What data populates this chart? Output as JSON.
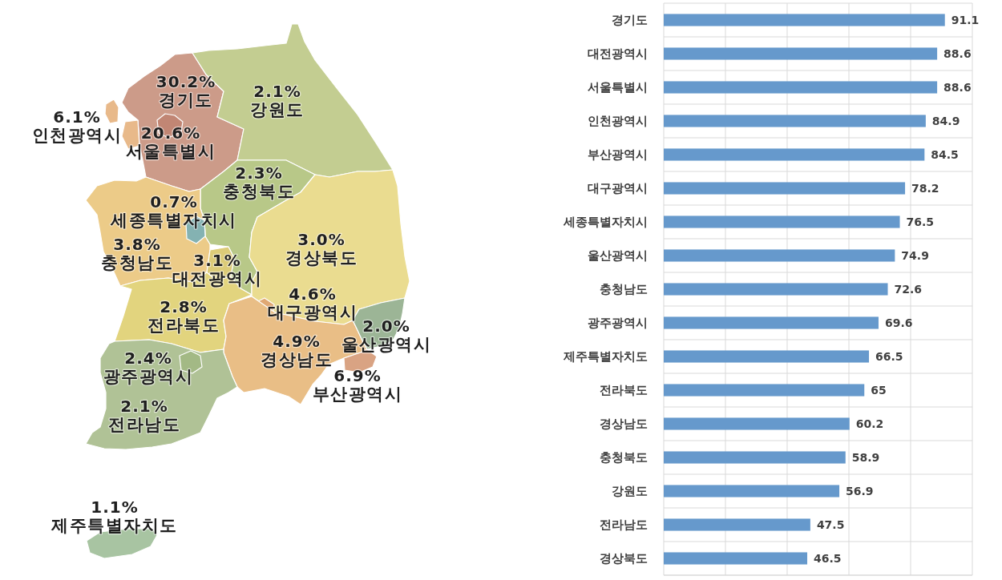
{
  "chart_data": [
    {
      "type": "other",
      "categories": [
        "경기도",
        "서울특별시",
        "인천광역시",
        "강원도",
        "충청북도",
        "충청남도",
        "세종특별자치시",
        "대전광역시",
        "경상북도",
        "대구광역시",
        "전라북도",
        "경상남도",
        "울산광역시",
        "부산광역시",
        "전라남도",
        "광주광역시",
        "제주특별자치도"
      ],
      "values": [
        30.2,
        20.6,
        6.1,
        2.1,
        2.3,
        3.8,
        0.7,
        3.1,
        3.0,
        4.6,
        2.8,
        4.9,
        2.0,
        6.9,
        2.1,
        2.4,
        1.1
      ],
      "value_labels": [
        "30.2%",
        "20.6%",
        "6.1%",
        "2.1%",
        "2.3%",
        "3.8%",
        "0.7%",
        "3.1%",
        "3.0%",
        "4.6%",
        "2.8%",
        "4.9%",
        "2.0%",
        "6.9%",
        "2.1%",
        "2.4%",
        "1.1%"
      ],
      "colors": [
        "#cc9b89",
        "#c18674",
        "#e8b98a",
        "#c3cd91",
        "#b8c888",
        "#eccb88",
        "#84b2b2",
        "#dccb78",
        "#eadc90",
        "#e0a874",
        "#e2d47e",
        "#e9be86",
        "#9cb596",
        "#d9a383",
        "#b0c296",
        "#a3b985",
        "#a8c4a2"
      ]
    },
    {
      "type": "bar",
      "orientation": "horizontal",
      "categories": [
        "경기도",
        "대전광역시",
        "서울특별시",
        "인천광역시",
        "부산광역시",
        "대구광역시",
        "세종특별자치시",
        "울산광역시",
        "충청남도",
        "광주광역시",
        "제주특별자치도",
        "전라북도",
        "경상남도",
        "충청북도",
        "강원도",
        "전라남도",
        "경상북도"
      ],
      "values": [
        91.1,
        88.6,
        88.6,
        84.9,
        84.5,
        78.2,
        76.5,
        74.9,
        72.6,
        69.6,
        66.5,
        65,
        60.2,
        58.9,
        56.9,
        47.5,
        46.5
      ],
      "color": "#6699cc",
      "xlim": [
        0,
        100
      ],
      "xticks": [
        {
          "value": 0,
          "label": null
        },
        {
          "value": 20,
          "label": null
        },
        {
          "value": 40,
          "label": null
        },
        {
          "value": 60,
          "label": null
        },
        {
          "value": 80,
          "label": null
        },
        {
          "value": 100,
          "label": null
        }
      ],
      "grid": true,
      "data_labels": true
    }
  ]
}
